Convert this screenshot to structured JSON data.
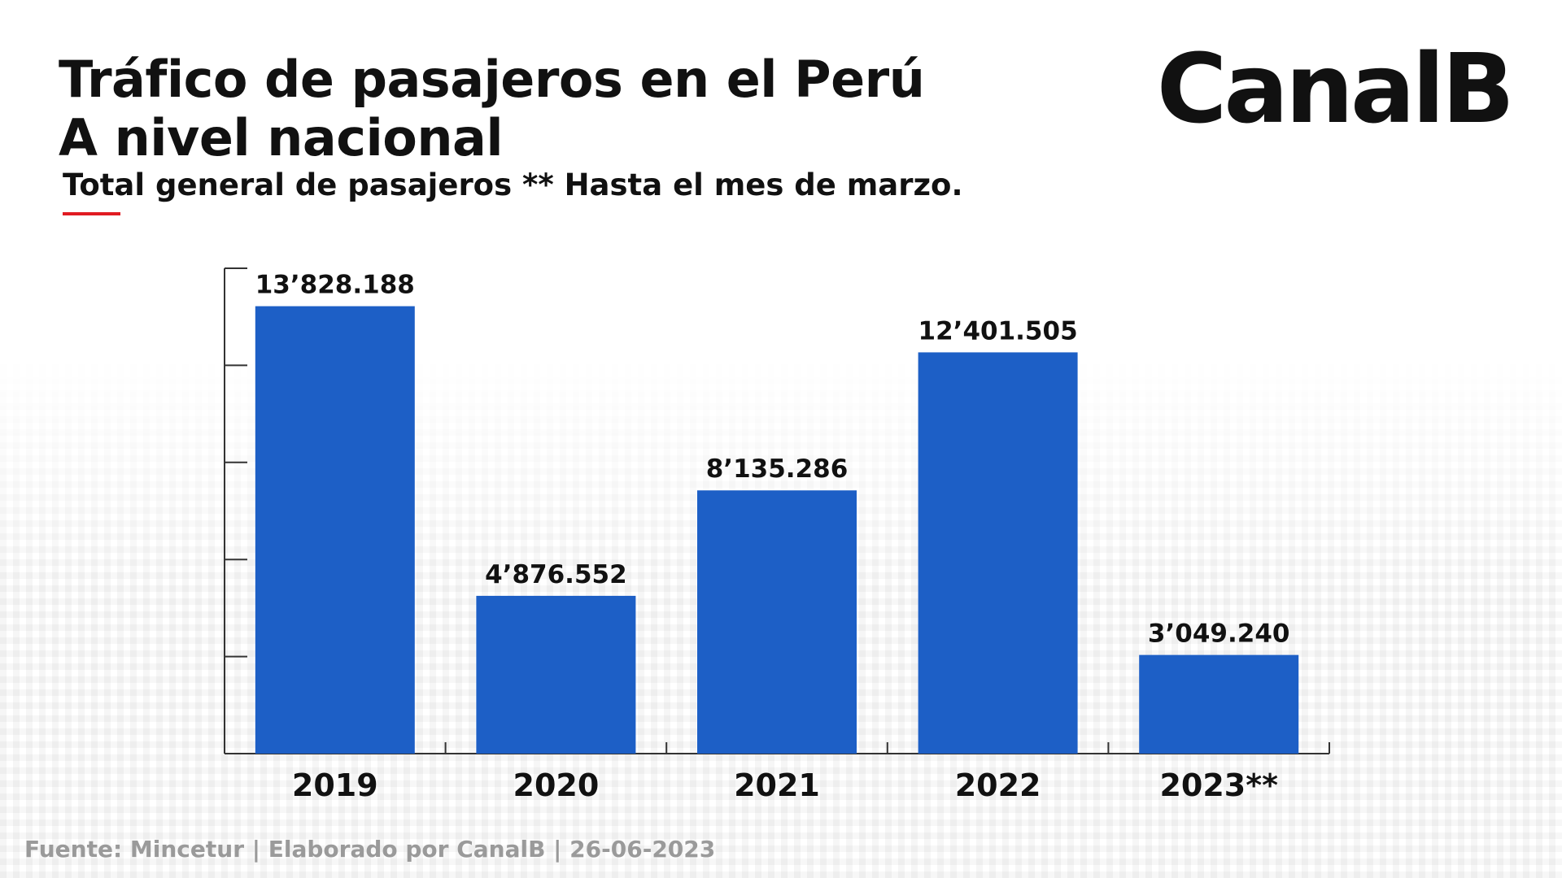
{
  "header": {
    "title_line1": "Tráfico de pasajeros en el Perú",
    "title_line2": "A nivel nacional",
    "subtitle": "Total general de pasajeros ** Hasta el mes de marzo.",
    "logo": "CanalB"
  },
  "colors": {
    "bar": "#1d5fc6",
    "accent": "#e11b22",
    "axis": "#333333",
    "text": "#111111"
  },
  "chart_data": {
    "type": "bar",
    "title": "Tráfico de pasajeros en el Perú",
    "categories": [
      "2019",
      "2020",
      "2021",
      "2022",
      "2023**"
    ],
    "values": [
      13828188,
      4876552,
      8135286,
      12401505,
      3049240
    ],
    "value_labels": [
      "13’828.188",
      "4’876.552",
      "8’135.286",
      "12’401.505",
      "3’049.240"
    ],
    "ylim": [
      0,
      15000000
    ],
    "xlabel": "",
    "ylabel": "",
    "grid": false,
    "legend": "none"
  },
  "footer": {
    "source": "Fuente: Mincetur | Elaborado por CanalB | 26-06-2023"
  }
}
